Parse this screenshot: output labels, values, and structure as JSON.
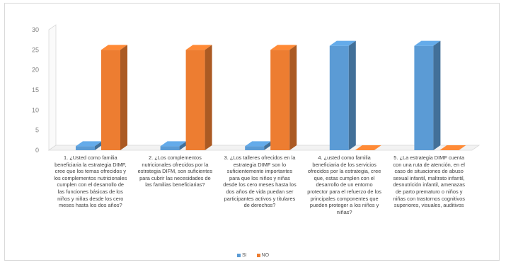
{
  "chart_data": {
    "type": "bar",
    "title": "",
    "xlabel": "",
    "ylabel": "",
    "ylim": [
      0,
      30
    ],
    "yticks": [
      0,
      5,
      10,
      15,
      20,
      25,
      30
    ],
    "grid": false,
    "legend_position": "bottom",
    "categories": [
      "1. ¿Usted como familia beneficiaria la estrategia DIMF, cree que los temas ofrecidos y los complementos nutricionales cumplen con el desarrollo de las funciones básicas de los niños y niñas desde los cero meses hasta los dos años?",
      "2. ¿Los complementos nutricionales ofrecidos por la estrategia DIFM, son suficientes para cubrir las necesidades de las familias beneficiarias?",
      "3. ¿Los talleres ofrecidos en la estrategia DIMF son lo suficientemente importantes para que los niños y niñas desde los cero meses hasta los dos años de vida puedan ser participantes activos y titulares de derechos?",
      "4. ¿usted como familia beneficiaria de los servicios ofrecidos por la estrategia, cree que, estas cumplen con el desarrollo de un entorno protector para el refuerzo de los principales componentes que pueden proteger a los niños y niñas?",
      "5. ¿La estrategia DIMF cuenta con una ruta de atención, en el caso de situaciones de abuso sexual infantil, maltrato infantil, desnutrición infantil, amenazas de parto prematuro o niños y niñas con trastornos cognitivos superiores, visuales, auditivos"
    ],
    "series": [
      {
        "name": "SI",
        "color": "#5b9bd5",
        "values": [
          1,
          1,
          1,
          26,
          26
        ]
      },
      {
        "name": "NO",
        "color": "#ed7d31",
        "values": [
          25,
          25,
          25,
          0,
          0
        ]
      }
    ]
  }
}
